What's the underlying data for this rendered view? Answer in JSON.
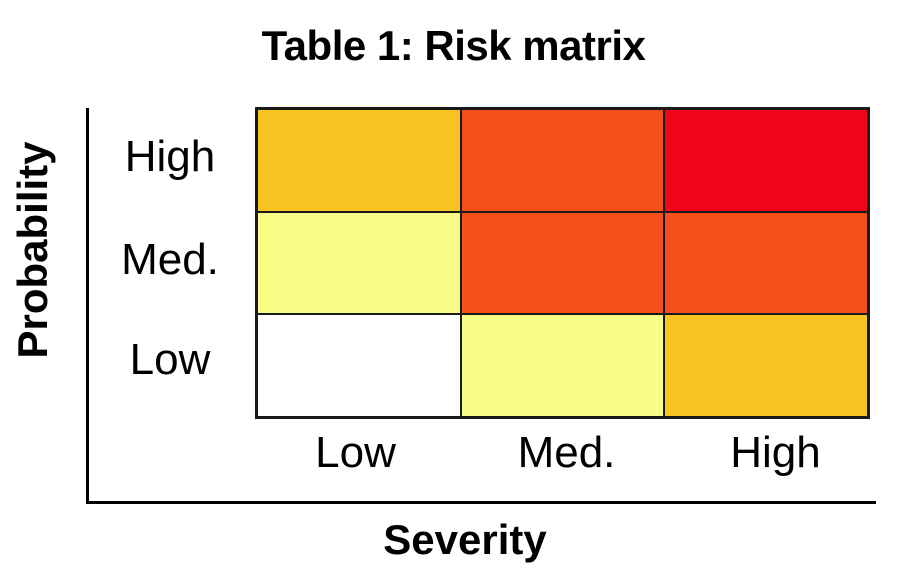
{
  "chart_data": {
    "type": "heatmap",
    "title": "Table 1: Risk matrix",
    "xlabel": "Severity",
    "ylabel": "Probability",
    "x_categories": [
      "Low",
      "Med.",
      "High"
    ],
    "y_categories": [
      "High",
      "Med.",
      "Low"
    ],
    "cells": [
      [
        {
          "probability": "High",
          "severity": "Low",
          "color": "#F9C322"
        },
        {
          "probability": "High",
          "severity": "Med.",
          "color": "#F4511A"
        },
        {
          "probability": "High",
          "severity": "High",
          "color": "#EE0517"
        }
      ],
      [
        {
          "probability": "Med.",
          "severity": "Low",
          "color": "#FAFD86"
        },
        {
          "probability": "Med.",
          "severity": "Med.",
          "color": "#F4511A"
        },
        {
          "probability": "Med.",
          "severity": "High",
          "color": "#F4511A"
        }
      ],
      [
        {
          "probability": "Low",
          "severity": "Low",
          "color": "#FFFFFF"
        },
        {
          "probability": "Low",
          "severity": "Med.",
          "color": "#FAFD86"
        },
        {
          "probability": "Low",
          "severity": "High",
          "color": "#F9C322"
        }
      ]
    ],
    "grid": true,
    "legend": "none"
  }
}
